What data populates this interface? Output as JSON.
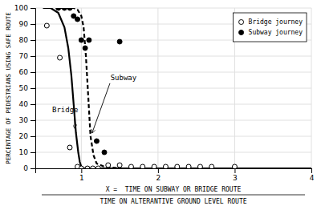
{
  "chart_data": {
    "type": "line",
    "xlabel": [
      "X =  TIME ON SUBWAY OR BRIDGE ROUTE",
      "TIME ON ALTERANTIVE GROUND LEVEL ROUTE"
    ],
    "ylabel": "PERCENTAGE OF PEDESTRIANS USING SAFE ROUTE",
    "xlim": [
      0.4,
      4.0
    ],
    "ylim": [
      0,
      100
    ],
    "xticks": [
      1,
      2,
      3,
      4
    ],
    "yticks": [
      0,
      10,
      20,
      30,
      40,
      50,
      60,
      70,
      80,
      90,
      100
    ],
    "grid": true,
    "legend": "upper right",
    "series": [
      {
        "type": "line",
        "line_style": "solid",
        "color": "#000000",
        "x": [
          0.5,
          0.6,
          0.7,
          0.78,
          0.83,
          0.87,
          0.9,
          0.93,
          0.96,
          0.98,
          1.0,
          1.03,
          1.06,
          1.1,
          1.2,
          1.5,
          2.0,
          3.0,
          4.0
        ],
        "values": [
          100,
          100,
          97,
          88,
          75,
          58,
          40,
          22,
          10,
          4,
          1,
          0,
          0,
          0,
          0,
          0,
          0,
          0,
          0
        ]
      },
      {
        "type": "line",
        "line_style": "dashed",
        "color": "#000000",
        "x": [
          0.7,
          0.78,
          0.85,
          0.9,
          0.95,
          1.0,
          1.03,
          1.06,
          1.09,
          1.12,
          1.16,
          1.2,
          1.3,
          1.5,
          2.0
        ],
        "values": [
          100,
          100,
          100,
          100,
          99,
          95,
          88,
          70,
          45,
          20,
          8,
          3,
          1,
          0,
          0
        ]
      },
      {
        "name": "Bridge journey",
        "type": "scatter",
        "marker": "open-circle",
        "color": "#000000",
        "x": [
          0.55,
          0.72,
          0.85,
          0.95,
          1.0,
          1.08,
          1.15,
          1.22,
          1.35,
          1.5,
          1.65,
          1.8,
          1.95,
          2.1,
          2.25,
          2.4,
          2.55,
          2.7,
          3.0
        ],
        "values": [
          89,
          69,
          13,
          1,
          0,
          0,
          0,
          0,
          2,
          2,
          1,
          1,
          1,
          1,
          1,
          1,
          1,
          1,
          1
        ]
      },
      {
        "name": "Subway journey",
        "type": "scatter",
        "marker": "circle",
        "color": "#000000",
        "x": [
          0.7,
          0.78,
          0.85,
          0.9,
          0.95,
          1.0,
          1.05,
          1.1,
          1.2,
          1.3,
          1.5
        ],
        "values": [
          100,
          100,
          100,
          95,
          93,
          80,
          75,
          80,
          17,
          10,
          79
        ]
      }
    ],
    "annotations": [
      {
        "text": "Bridge",
        "x": 0.915,
        "y": 25,
        "text_x": 0.62,
        "text_y": 35
      },
      {
        "text": "Subway",
        "x": 1.14,
        "y": 22,
        "text_x": 1.38,
        "text_y": 55
      }
    ]
  }
}
